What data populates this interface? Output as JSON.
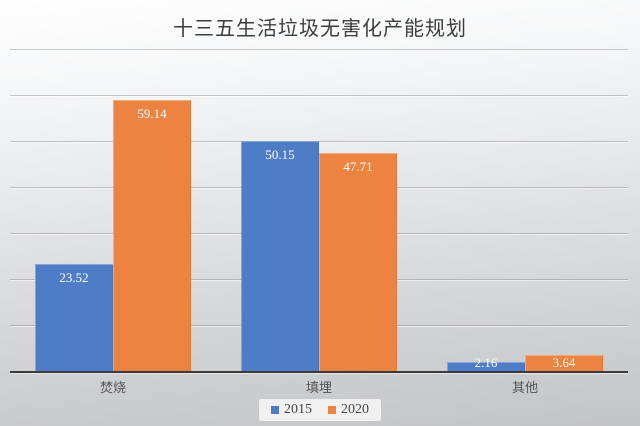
{
  "chart_data": {
    "type": "bar",
    "title": "十三五生活垃圾无害化产能规划",
    "xlabel": "",
    "ylabel": "",
    "categories": [
      "焚烧",
      "填埋",
      "其他"
    ],
    "series": [
      {
        "name": "2015",
        "color": "#4E7CC6",
        "values": [
          23.52,
          50.15,
          2.16
        ]
      },
      {
        "name": "2020",
        "color": "#EC8340",
        "values": [
          59.14,
          47.71,
          3.64
        ]
      }
    ],
    "ylim": [
      0,
      70
    ],
    "ytick_interval": 10,
    "grid": true,
    "y_axis_labels_visible": false,
    "legend_position": "bottom",
    "value_labels": "inside-end",
    "value_label_color": "#ffffff",
    "axis_line_color": "#3a3a3a",
    "title_color": "#3d3d3d",
    "category_label_color": "#545454"
  }
}
